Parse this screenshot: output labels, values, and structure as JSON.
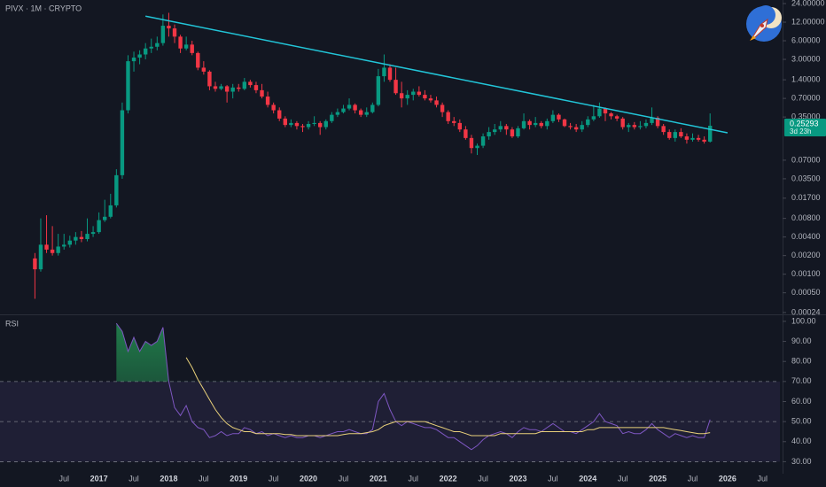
{
  "chart_data": [
    {
      "type": "candlestick",
      "title": "PIVX · 1M · CRYPTO",
      "countdown": "3d 23h",
      "categories": [
        "2016-02",
        "2016-03",
        "2016-04",
        "2016-05",
        "2016-06",
        "2016-07",
        "2016-08",
        "2016-09",
        "2016-10",
        "2016-11",
        "2016-12",
        "2017-01",
        "2017-02",
        "2017-03",
        "2017-04",
        "2017-05",
        "2017-06",
        "2017-07",
        "2017-08",
        "2017-09",
        "2017-10",
        "2017-11",
        "2017-12",
        "2018-01",
        "2018-02",
        "2018-03",
        "2018-04",
        "2018-05",
        "2018-06",
        "2018-07",
        "2018-08",
        "2018-09",
        "2018-10",
        "2018-11",
        "2018-12",
        "2019-01",
        "2019-02",
        "2019-03",
        "2019-04",
        "2019-05",
        "2019-06",
        "2019-07",
        "2019-08",
        "2019-09",
        "2019-10",
        "2019-11",
        "2019-12",
        "2020-01",
        "2020-02",
        "2020-03",
        "2020-04",
        "2020-05",
        "2020-06",
        "2020-07",
        "2020-08",
        "2020-09",
        "2020-10",
        "2020-11",
        "2020-12",
        "2021-01",
        "2021-02",
        "2021-03",
        "2021-04",
        "2021-05",
        "2021-06",
        "2021-07",
        "2021-08",
        "2021-09",
        "2021-10",
        "2021-11",
        "2021-12",
        "2022-01",
        "2022-02",
        "2022-03",
        "2022-04",
        "2022-05",
        "2022-06",
        "2022-07",
        "2022-08",
        "2022-09",
        "2022-10",
        "2022-11",
        "2022-12",
        "2023-01",
        "2023-02",
        "2023-03",
        "2023-04",
        "2023-05",
        "2023-06",
        "2023-07",
        "2023-08",
        "2023-09",
        "2023-10",
        "2023-11",
        "2023-12",
        "2024-01",
        "2024-02",
        "2024-03",
        "2024-04",
        "2024-05",
        "2024-06",
        "2024-07",
        "2024-08",
        "2024-09",
        "2024-10",
        "2024-11",
        "2024-12",
        "2025-01",
        "2025-02",
        "2025-03",
        "2025-04",
        "2025-05",
        "2025-06",
        "2025-07",
        "2025-08",
        "2025-09",
        "2025-10"
      ],
      "open": [
        0.0018,
        0.0012,
        0.003,
        0.0025,
        0.0022,
        0.0028,
        0.003,
        0.0035,
        0.004,
        0.0037,
        0.0045,
        0.0048,
        0.0075,
        0.0085,
        0.013,
        0.04,
        0.45,
        2.8,
        3.2,
        3.6,
        4.5,
        4.8,
        5.5,
        10.5,
        9.5,
        7,
        4.5,
        5.2,
        3.8,
        2.2,
        1.9,
        1.1,
        1.0,
        1.1,
        0.9,
        1.05,
        1.0,
        1.3,
        1.15,
        0.95,
        0.75,
        0.55,
        0.45,
        0.33,
        0.26,
        0.28,
        0.25,
        0.24,
        0.27,
        0.28,
        0.24,
        0.3,
        0.38,
        0.42,
        0.48,
        0.55,
        0.45,
        0.38,
        0.42,
        0.55,
        1.6,
        2.2,
        1.4,
        0.85,
        0.7,
        0.8,
        0.9,
        0.8,
        0.7,
        0.65,
        0.55,
        0.42,
        0.3,
        0.28,
        0.22,
        0.16,
        0.11,
        0.12,
        0.17,
        0.2,
        0.22,
        0.25,
        0.22,
        0.17,
        0.23,
        0.3,
        0.26,
        0.28,
        0.25,
        0.3,
        0.38,
        0.32,
        0.25,
        0.24,
        0.22,
        0.26,
        0.32,
        0.36,
        0.48,
        0.4,
        0.36,
        0.33,
        0.24,
        0.26,
        0.24,
        0.25,
        0.28,
        0.34,
        0.25,
        0.2,
        0.16,
        0.2,
        0.17,
        0.15,
        0.16,
        0.15,
        0.14
      ],
      "high": [
        0.0022,
        0.008,
        0.009,
        0.006,
        0.0045,
        0.0045,
        0.0042,
        0.0048,
        0.005,
        0.008,
        0.006,
        0.01,
        0.016,
        0.02,
        0.05,
        0.6,
        3.5,
        4,
        4.2,
        5.5,
        6.5,
        7,
        16,
        17,
        11,
        7.5,
        7,
        6,
        4,
        2.8,
        2,
        1.3,
        1.2,
        1.15,
        1.2,
        1.2,
        1.5,
        1.4,
        1.3,
        1.2,
        0.9,
        0.6,
        0.5,
        0.36,
        0.32,
        0.3,
        0.27,
        0.3,
        0.36,
        0.3,
        0.32,
        0.42,
        0.48,
        0.55,
        0.7,
        0.58,
        0.48,
        0.5,
        0.6,
        2.1,
        3.6,
        2.5,
        2.2,
        1.3,
        0.95,
        1.0,
        1.1,
        0.95,
        0.8,
        0.75,
        0.6,
        0.45,
        0.35,
        0.32,
        0.25,
        0.18,
        0.13,
        0.19,
        0.24,
        0.27,
        0.3,
        0.27,
        0.24,
        0.25,
        0.4,
        0.32,
        0.35,
        0.3,
        0.33,
        0.45,
        0.4,
        0.33,
        0.28,
        0.27,
        0.3,
        0.36,
        0.55,
        0.6,
        0.5,
        0.42,
        0.38,
        0.35,
        0.28,
        0.29,
        0.3,
        0.32,
        0.5,
        0.36,
        0.27,
        0.22,
        0.22,
        0.23,
        0.19,
        0.19,
        0.18,
        0.17,
        0.4
      ],
      "low": [
        0.0004,
        0.0011,
        0.0022,
        0.002,
        0.002,
        0.0025,
        0.0027,
        0.003,
        0.0033,
        0.0034,
        0.004,
        0.0045,
        0.007,
        0.008,
        0.012,
        0.035,
        0.4,
        1.9,
        2.5,
        3,
        3.8,
        4.2,
        5,
        7,
        5.5,
        3.8,
        4.2,
        3.5,
        2,
        1.7,
        0.95,
        0.9,
        0.95,
        0.6,
        0.7,
        0.9,
        0.95,
        1.05,
        0.85,
        0.7,
        0.5,
        0.4,
        0.3,
        0.24,
        0.24,
        0.22,
        0.2,
        0.22,
        0.25,
        0.18,
        0.22,
        0.28,
        0.35,
        0.4,
        0.45,
        0.4,
        0.35,
        0.35,
        0.4,
        0.52,
        1.3,
        1.3,
        0.8,
        0.5,
        0.55,
        0.65,
        0.75,
        0.65,
        0.6,
        0.5,
        0.35,
        0.27,
        0.25,
        0.2,
        0.15,
        0.09,
        0.085,
        0.11,
        0.15,
        0.18,
        0.2,
        0.18,
        0.16,
        0.16,
        0.22,
        0.22,
        0.24,
        0.23,
        0.22,
        0.28,
        0.29,
        0.24,
        0.22,
        0.2,
        0.2,
        0.24,
        0.3,
        0.34,
        0.3,
        0.32,
        0.3,
        0.22,
        0.2,
        0.22,
        0.22,
        0.23,
        0.26,
        0.23,
        0.18,
        0.15,
        0.14,
        0.16,
        0.13,
        0.14,
        0.14,
        0.13,
        0.135
      ],
      "close": [
        0.0012,
        0.003,
        0.0025,
        0.0022,
        0.0028,
        0.003,
        0.0035,
        0.004,
        0.0037,
        0.0045,
        0.0048,
        0.0075,
        0.0085,
        0.013,
        0.04,
        0.45,
        2.8,
        3.2,
        3.6,
        4.5,
        4.8,
        5.5,
        10.5,
        9.5,
        7,
        4.5,
        5.2,
        3.8,
        2.2,
        1.9,
        1.1,
        1.0,
        1.1,
        0.9,
        1.05,
        1.0,
        1.3,
        1.15,
        0.95,
        0.75,
        0.55,
        0.45,
        0.33,
        0.26,
        0.28,
        0.25,
        0.24,
        0.27,
        0.28,
        0.24,
        0.3,
        0.38,
        0.42,
        0.48,
        0.55,
        0.45,
        0.38,
        0.42,
        0.55,
        1.6,
        2.2,
        1.4,
        0.85,
        0.7,
        0.8,
        0.9,
        0.8,
        0.7,
        0.65,
        0.55,
        0.42,
        0.3,
        0.28,
        0.22,
        0.16,
        0.11,
        0.12,
        0.17,
        0.2,
        0.22,
        0.25,
        0.22,
        0.17,
        0.23,
        0.3,
        0.26,
        0.28,
        0.25,
        0.3,
        0.38,
        0.32,
        0.25,
        0.24,
        0.22,
        0.26,
        0.32,
        0.36,
        0.48,
        0.4,
        0.36,
        0.33,
        0.24,
        0.26,
        0.24,
        0.25,
        0.28,
        0.34,
        0.25,
        0.2,
        0.16,
        0.2,
        0.17,
        0.15,
        0.16,
        0.15,
        0.14,
        0.25293
      ],
      "up_color": "#089981",
      "down_color": "#f23645",
      "log_scale": true,
      "xlim": [
        "2015-08",
        "2026-10"
      ],
      "ylim": [
        0.000224,
        27.4
      ],
      "yticks": [
        {
          "value": 24,
          "label": "24.00000"
        },
        {
          "value": 12,
          "label": "12.00000"
        },
        {
          "value": 6,
          "label": "6.00000"
        },
        {
          "value": 3,
          "label": "3.00000"
        },
        {
          "value": 1.4,
          "label": "1.40000"
        },
        {
          "value": 0.7,
          "label": "0.70000"
        },
        {
          "value": 0.35,
          "label": "0.35000"
        },
        {
          "value": 0.07,
          "label": "0.07000"
        },
        {
          "value": 0.035,
          "label": "0.03500"
        },
        {
          "value": 0.017,
          "label": "0.01700"
        },
        {
          "value": 0.008,
          "label": "0.00800"
        },
        {
          "value": 0.004,
          "label": "0.00400"
        },
        {
          "value": 0.002,
          "label": "0.00200"
        },
        {
          "value": 0.001,
          "label": "0.00100"
        },
        {
          "value": 0.0005,
          "label": "0.00050"
        },
        {
          "value": 0.00024,
          "label": "0.00024"
        }
      ],
      "trendline": {
        "x": [
          "2017-09",
          "2026-01"
        ],
        "y": [
          15,
          0.194
        ],
        "color": "#22c5d8"
      }
    },
    {
      "type": "line",
      "title": "RSI",
      "categories": [
        "2016-02",
        "2016-03",
        "2016-04",
        "2016-05",
        "2016-06",
        "2016-07",
        "2016-08",
        "2016-09",
        "2016-10",
        "2016-11",
        "2016-12",
        "2017-01",
        "2017-02",
        "2017-03",
        "2017-04",
        "2017-05",
        "2017-06",
        "2017-07",
        "2017-08",
        "2017-09",
        "2017-10",
        "2017-11",
        "2017-12",
        "2018-01",
        "2018-02",
        "2018-03",
        "2018-04",
        "2018-05",
        "2018-06",
        "2018-07",
        "2018-08",
        "2018-09",
        "2018-10",
        "2018-11",
        "2018-12",
        "2019-01",
        "2019-02",
        "2019-03",
        "2019-04",
        "2019-05",
        "2019-06",
        "2019-07",
        "2019-08",
        "2019-09",
        "2019-10",
        "2019-11",
        "2019-12",
        "2020-01",
        "2020-02",
        "2020-03",
        "2020-04",
        "2020-05",
        "2020-06",
        "2020-07",
        "2020-08",
        "2020-09",
        "2020-10",
        "2020-11",
        "2020-12",
        "2021-01",
        "2021-02",
        "2021-03",
        "2021-04",
        "2021-05",
        "2021-06",
        "2021-07",
        "2021-08",
        "2021-09",
        "2021-10",
        "2021-11",
        "2021-12",
        "2022-01",
        "2022-02",
        "2022-03",
        "2022-04",
        "2022-05",
        "2022-06",
        "2022-07",
        "2022-08",
        "2022-09",
        "2022-10",
        "2022-11",
        "2022-12",
        "2023-01",
        "2023-02",
        "2023-03",
        "2023-04",
        "2023-05",
        "2023-06",
        "2023-07",
        "2023-08",
        "2023-09",
        "2023-10",
        "2023-11",
        "2023-12",
        "2024-01",
        "2024-02",
        "2024-03",
        "2024-04",
        "2024-05",
        "2024-06",
        "2024-07",
        "2024-08",
        "2024-09",
        "2024-10",
        "2024-11",
        "2024-12",
        "2025-01",
        "2025-02",
        "2025-03",
        "2025-04",
        "2025-05",
        "2025-06",
        "2025-07",
        "2025-08",
        "2025-09",
        "2025-10"
      ],
      "series": [
        {
          "color": "#7e57c2",
          "values": [
            null,
            null,
            null,
            null,
            null,
            null,
            null,
            null,
            null,
            null,
            null,
            null,
            null,
            null,
            99,
            95,
            85,
            92,
            85,
            90,
            88,
            90,
            97,
            70,
            57,
            53,
            58,
            50,
            47,
            46,
            42,
            43,
            45,
            43,
            44,
            44,
            47,
            46,
            44,
            45,
            43,
            44,
            43,
            42,
            43,
            42,
            42,
            43,
            43,
            42,
            43,
            44,
            45,
            45,
            46,
            45,
            44,
            44,
            46,
            60,
            64,
            56,
            50,
            48,
            50,
            49,
            48,
            47,
            47,
            46,
            44,
            42,
            42,
            40,
            38,
            36,
            38,
            41,
            43,
            44,
            45,
            44,
            42,
            45,
            47,
            46,
            46,
            45,
            47,
            49,
            47,
            45,
            45,
            44,
            46,
            48,
            50,
            54,
            50,
            49,
            48,
            44,
            45,
            44,
            44,
            46,
            49,
            46,
            44,
            42,
            44,
            43,
            42,
            43,
            42,
            42,
            51
          ]
        },
        {
          "color": "#e8d07a",
          "values": [
            null,
            null,
            null,
            null,
            null,
            null,
            null,
            null,
            null,
            null,
            null,
            null,
            null,
            null,
            null,
            null,
            null,
            null,
            null,
            null,
            null,
            null,
            null,
            null,
            null,
            null,
            82,
            77,
            71,
            66,
            61,
            56,
            52,
            49,
            47,
            46,
            45,
            45,
            44,
            44,
            44,
            44,
            44,
            43.5,
            43.5,
            43,
            43,
            43,
            43,
            43,
            43,
            43,
            43,
            43.5,
            44,
            44,
            44,
            44.5,
            45,
            46,
            48,
            49,
            50,
            50,
            50,
            50,
            50,
            50,
            49,
            48,
            47,
            46,
            45,
            45,
            44,
            43,
            43,
            43,
            43,
            43,
            44,
            44,
            44,
            44,
            44,
            44,
            44,
            45,
            45,
            45,
            45,
            45,
            45,
            45,
            45,
            46,
            46,
            47,
            47,
            47,
            47,
            47,
            47,
            47,
            47,
            47,
            47,
            47,
            47,
            46.5,
            46,
            45.5,
            45,
            44.5,
            44,
            44,
            44.5
          ]
        }
      ],
      "levels": [
        70,
        50,
        30
      ],
      "xlim": [
        "2015-08",
        "2026-10"
      ],
      "ylim": [
        24,
        103.5
      ],
      "yticks": [
        {
          "value": 100,
          "label": "100.00"
        },
        {
          "value": 90,
          "label": "90.00"
        },
        {
          "value": 80,
          "label": "80.00"
        },
        {
          "value": 70,
          "label": "70.00"
        },
        {
          "value": 60,
          "label": "60.00"
        },
        {
          "value": 50,
          "label": "50.00"
        },
        {
          "value": 40,
          "label": "40.00"
        },
        {
          "value": 30,
          "label": "30.00"
        }
      ],
      "xticks": [
        {
          "value": "2016-07",
          "label": "Jul"
        },
        {
          "value": "2017-01",
          "label": "2017"
        },
        {
          "value": "2017-07",
          "label": "Jul"
        },
        {
          "value": "2018-01",
          "label": "2018"
        },
        {
          "value": "2018-07",
          "label": "Jul"
        },
        {
          "value": "2019-01",
          "label": "2019"
        },
        {
          "value": "2019-07",
          "label": "Jul"
        },
        {
          "value": "2020-01",
          "label": "2020"
        },
        {
          "value": "2020-07",
          "label": "Jul"
        },
        {
          "value": "2021-01",
          "label": "2021"
        },
        {
          "value": "2021-07",
          "label": "Jul"
        },
        {
          "value": "2022-01",
          "label": "2022"
        },
        {
          "value": "2022-07",
          "label": "Jul"
        },
        {
          "value": "2023-01",
          "label": "2023"
        },
        {
          "value": "2023-07",
          "label": "Jul"
        },
        {
          "value": "2024-01",
          "label": "2024"
        },
        {
          "value": "2024-07",
          "label": "Jul"
        },
        {
          "value": "2025-01",
          "label": "2025"
        },
        {
          "value": "2025-07",
          "label": "Jul"
        },
        {
          "value": "2026-01",
          "label": "2026"
        },
        {
          "value": "2026-07",
          "label": "Jul"
        }
      ]
    }
  ]
}
